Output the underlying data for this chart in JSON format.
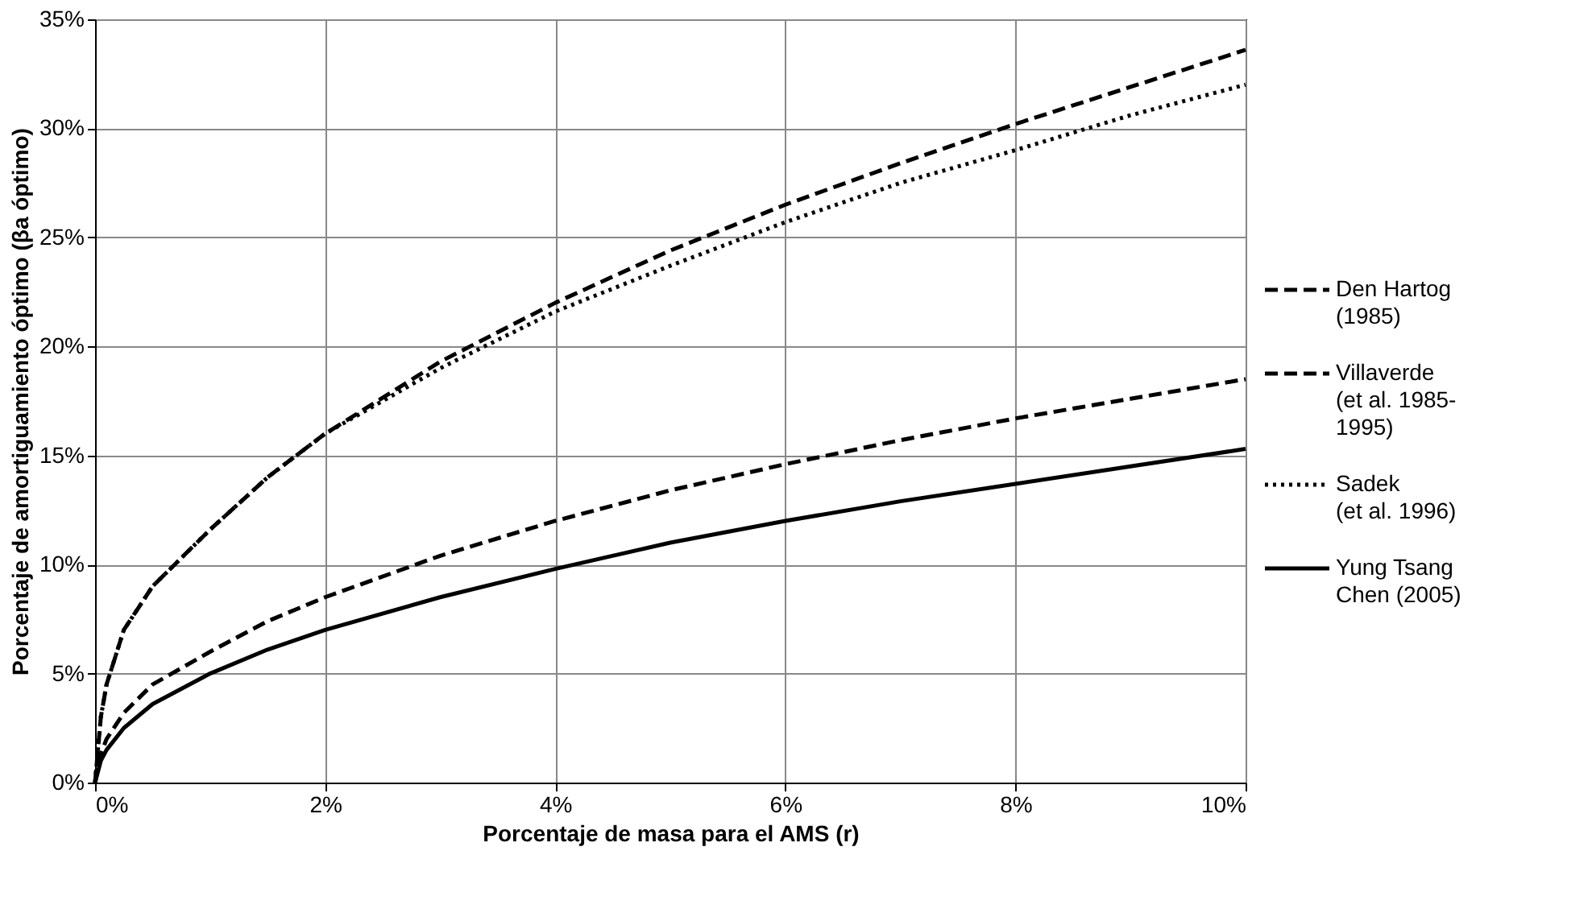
{
  "chart_data": {
    "type": "line",
    "xlabel": "Porcentaje de masa para el AMS (r)",
    "ylabel": "Porcentaje de amortiguamiento óptimo (βa óptimo)",
    "xlim": [
      0,
      10
    ],
    "ylim": [
      0,
      35
    ],
    "xticks": [
      {
        "value": 0,
        "label": "0%"
      },
      {
        "value": 2,
        "label": "2%"
      },
      {
        "value": 4,
        "label": "4%"
      },
      {
        "value": 6,
        "label": "6%"
      },
      {
        "value": 8,
        "label": "8%"
      },
      {
        "value": 10,
        "label": "10%"
      }
    ],
    "yticks": [
      {
        "value": 0,
        "label": "0%"
      },
      {
        "value": 5,
        "label": "5%"
      },
      {
        "value": 10,
        "label": "10%"
      },
      {
        "value": 15,
        "label": "15%"
      },
      {
        "value": 20,
        "label": "20%"
      },
      {
        "value": 25,
        "label": "25%"
      },
      {
        "value": 30,
        "label": "30%"
      },
      {
        "value": 35,
        "label": "35%"
      }
    ],
    "grid": true,
    "legend": "right",
    "marker": "none",
    "x": [
      0,
      0.05,
      0.1,
      0.25,
      0.5,
      1,
      1.5,
      2,
      3,
      4,
      5,
      6,
      7,
      8,
      9,
      10
    ],
    "series": [
      {
        "name": "Den Hartog\n(1985)",
        "color": "#000000",
        "line_style": "dashed",
        "values": [
          0,
          3,
          4.5,
          7,
          9,
          11.6,
          14,
          16,
          19.3,
          22,
          24.4,
          26.5,
          28.4,
          30.2,
          31.9,
          33.6
        ]
      },
      {
        "name": "Villaverde\n(et al. 1985-\n1995)",
        "color": "#000000",
        "line_style": "dashed",
        "values": [
          0,
          1.3,
          2,
          3.2,
          4.5,
          6,
          7.4,
          8.5,
          10.4,
          12,
          13.4,
          14.6,
          15.7,
          16.7,
          17.6,
          18.5
        ]
      },
      {
        "name": "Sadek\n(et al. 1996)",
        "color": "#000000",
        "line_style": "dotted",
        "values": [
          0,
          3,
          4.5,
          7,
          9,
          11.6,
          14,
          16,
          19,
          21.6,
          23.7,
          25.7,
          27.5,
          29,
          30.6,
          32
        ]
      },
      {
        "name": "Yung Tsang\nChen (2005)",
        "color": "#000000",
        "line_style": "solid",
        "values": [
          0,
          1,
          1.5,
          2.5,
          3.6,
          5,
          6.1,
          7,
          8.5,
          9.8,
          11,
          12,
          12.9,
          13.7,
          14.5,
          15.3
        ]
      }
    ]
  }
}
